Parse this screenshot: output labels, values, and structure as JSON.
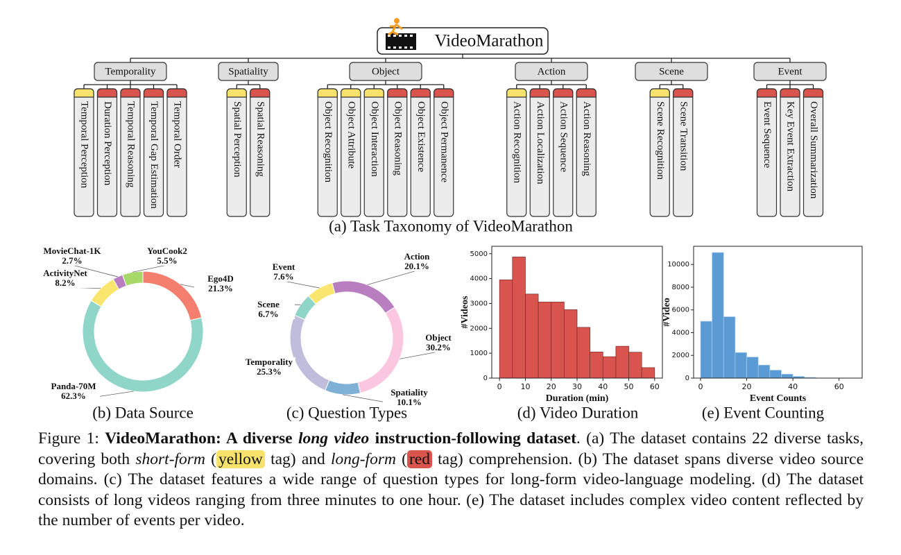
{
  "taxonomy": {
    "root": "VideoMarathon",
    "caption": "(a) Task Taxonomy of VideoMarathon",
    "categories": [
      {
        "name": "Temporality",
        "tasks": [
          {
            "label": "Temporal Perception",
            "tag_color": "#f7e36b"
          },
          {
            "label": "Duration Perception",
            "tag_color": "#d9544d"
          },
          {
            "label": "Temporal Reasoning",
            "tag_color": "#d9544d"
          },
          {
            "label": "Temporal Gap Estimation",
            "tag_color": "#d9544d"
          },
          {
            "label": "Temporal Order",
            "tag_color": "#d9544d"
          }
        ]
      },
      {
        "name": "Spatiality",
        "tasks": [
          {
            "label": "Spatial Perception",
            "tag_color": "#f7e36b"
          },
          {
            "label": "Spatial Reasoning",
            "tag_color": "#d9544d"
          }
        ]
      },
      {
        "name": "Object",
        "tasks": [
          {
            "label": "Object Recognition",
            "tag_color": "#f7e36b"
          },
          {
            "label": "Object Attribute",
            "tag_color": "#f7e36b"
          },
          {
            "label": "Object Interaction",
            "tag_color": "#f7e36b"
          },
          {
            "label": "Object Reasoning",
            "tag_color": "#d9544d"
          },
          {
            "label": "Object Existence",
            "tag_color": "#d9544d"
          },
          {
            "label": "Object Permanence",
            "tag_color": "#d9544d"
          }
        ]
      },
      {
        "name": "Action",
        "tasks": [
          {
            "label": "Action Recognition",
            "tag_color": "#f7e36b"
          },
          {
            "label": "Action Localization",
            "tag_color": "#d9544d"
          },
          {
            "label": "Action Sequence",
            "tag_color": "#d9544d"
          },
          {
            "label": "Action Reasoning",
            "tag_color": "#d9544d"
          }
        ]
      },
      {
        "name": "Scene",
        "tasks": [
          {
            "label": "Scene Recognition",
            "tag_color": "#f7e36b"
          },
          {
            "label": "Scene Transition",
            "tag_color": "#d9544d"
          }
        ]
      },
      {
        "name": "Event",
        "tasks": [
          {
            "label": "Event Sequence",
            "tag_color": "#d9544d"
          },
          {
            "label": "Key Event Extraction",
            "tag_color": "#d9544d"
          },
          {
            "label": "Overall Summarization",
            "tag_color": "#d9544d"
          }
        ]
      }
    ]
  },
  "chart_data": [
    {
      "type": "donut",
      "caption": "(b) Data Source",
      "categories": [
        "Ego4D",
        "Panda-70M",
        "ActivityNet",
        "MovieChat-1K",
        "YouCook2"
      ],
      "values": [
        21.3,
        62.3,
        8.2,
        2.7,
        5.5
      ],
      "value_labels": [
        "21.3%",
        "62.3%",
        "8.2%",
        "2.7%",
        "5.5%"
      ],
      "colors": [
        "#f47f6f",
        "#8fd5c8",
        "#f8e66e",
        "#b87ec0",
        "#a8d868"
      ]
    },
    {
      "type": "donut",
      "caption": "(c) Question Types",
      "categories": [
        "Action",
        "Object",
        "Spatiality",
        "Temporality",
        "Scene",
        "Event"
      ],
      "values": [
        20.1,
        30.2,
        10.1,
        25.3,
        6.7,
        7.6
      ],
      "value_labels": [
        "20.1%",
        "30.2%",
        "10.1%",
        "25.3%",
        "6.7%",
        "7.6%"
      ],
      "colors": [
        "#b87ec0",
        "#fbc7e0",
        "#7fb0d6",
        "#c0bcdc",
        "#8fd5c8",
        "#f8e66e"
      ]
    },
    {
      "type": "histogram",
      "caption": "(d) Video Duration",
      "xlabel": "Duration (min)",
      "ylabel": "#Videos",
      "bins": [
        0,
        5,
        10,
        15,
        20,
        25,
        30,
        35,
        40,
        45,
        50,
        55,
        60
      ],
      "values": [
        3950,
        4870,
        3380,
        3060,
        3060,
        2750,
        2040,
        1050,
        860,
        1280,
        1040,
        420
      ],
      "color": "#d9534f",
      "edgecolor": "#7a2a27",
      "xlim": [
        -3,
        63
      ],
      "xticks": [
        0,
        10,
        20,
        30,
        40,
        50,
        60
      ],
      "ylim": [
        0,
        5300
      ],
      "yticks": [
        0,
        1000,
        2000,
        3000,
        4000,
        5000
      ]
    },
    {
      "type": "histogram",
      "caption": "(e) Event Counting",
      "xlabel": "Event Counts",
      "ylabel": "#Video",
      "bins": [
        0,
        5,
        10,
        15,
        20,
        25,
        30,
        35,
        40,
        45,
        50
      ],
      "values": [
        5000,
        11050,
        5400,
        2250,
        1850,
        1150,
        700,
        350,
        150,
        60
      ],
      "color": "#5b9bd5",
      "edgecolor": "#a9c9e8",
      "xlim": [
        -3,
        70
      ],
      "xticks": [
        0,
        20,
        40,
        60
      ],
      "ylim": [
        0,
        11600
      ],
      "yticks": [
        0,
        2000,
        4000,
        6000,
        8000,
        10000
      ]
    }
  ],
  "caption": {
    "segments": [
      "Figure 1:",
      "VideoMarathon: A diverse",
      "long video",
      "instruction-following dataset",
      ". (a) The dataset contains 22 diverse tasks, covering both",
      "short-form",
      "(",
      "yellow",
      "tag) and",
      "long-form",
      "(",
      "red",
      "tag) comprehension. (b) The dataset spans diverse video source domains. (c) The dataset features a wide range of question types for long-form video-language modeling. (d) The dataset consists of long videos ranging from three minutes to one hour. (e) The dataset includes complex video content reflected by the number of events per video."
    ]
  }
}
